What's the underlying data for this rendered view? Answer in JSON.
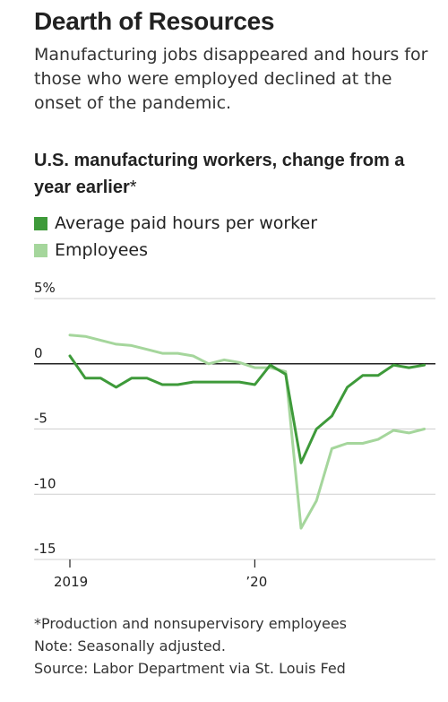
{
  "headline": "Dearth of Resources",
  "dek": "Manufacturing jobs disappeared and hours for those who were employed declined at the onset of the pandemic.",
  "chart_data": {
    "type": "line",
    "title": "U.S. manufacturing workers, change from a year earlier",
    "title_marker": "*",
    "xlabel": "",
    "ylabel": "",
    "unit": "%",
    "ylim": [
      -15,
      5
    ],
    "y_ticks": [
      5,
      0,
      -5,
      -10,
      -15
    ],
    "y_tick_labels": [
      "5%",
      "0",
      "-5",
      "-10",
      "-15"
    ],
    "x_ticks": [
      "2019",
      "’20"
    ],
    "grid": true,
    "legend_position": "top-left",
    "x": [
      "2019-01",
      "2019-02",
      "2019-03",
      "2019-04",
      "2019-05",
      "2019-06",
      "2019-07",
      "2019-08",
      "2019-09",
      "2019-10",
      "2019-11",
      "2019-12",
      "2020-01",
      "2020-02",
      "2020-03",
      "2020-04",
      "2020-05",
      "2020-06",
      "2020-07",
      "2020-08",
      "2020-09",
      "2020-10",
      "2020-11",
      "2020-12",
      "2021-01",
      "2021-02"
    ],
    "series": [
      {
        "name": "Average paid hours per worker",
        "color": "#3e9a3a",
        "values": [
          0.6,
          -1.1,
          -1.1,
          -1.8,
          -1.1,
          -1.1,
          -1.6,
          -1.6,
          -1.4,
          -1.4,
          -1.4,
          -1.4,
          -1.6,
          -0.1,
          -0.8,
          -7.6,
          -5.0,
          -4.0,
          -1.8,
          -0.9,
          -0.9,
          -0.1,
          -0.3,
          -0.1,
          null,
          null
        ]
      },
      {
        "name": "Employees",
        "color": "#a5d69c",
        "values": [
          2.2,
          2.1,
          1.8,
          1.5,
          1.4,
          1.1,
          0.8,
          0.8,
          0.6,
          0.0,
          0.3,
          0.1,
          -0.3,
          -0.3,
          -0.6,
          -12.6,
          -10.5,
          -6.5,
          -6.1,
          -6.1,
          -5.8,
          -5.1,
          -5.3,
          -5.0,
          null,
          null
        ]
      }
    ]
  },
  "notes": [
    "*Production and nonsupervisory employees",
    "Note: Seasonally adjusted.",
    "Source: Labor Department via St. Louis Fed"
  ]
}
